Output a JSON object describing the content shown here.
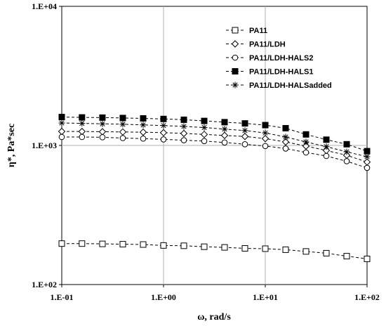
{
  "chart_data": {
    "type": "line",
    "title": "",
    "xlabel": "ω, rad/s",
    "ylabel": "η*, Pa*sec",
    "x_scale": "log",
    "y_scale": "log",
    "xlim": [
      0.1,
      100
    ],
    "ylim": [
      100,
      10000
    ],
    "x_ticks": [
      "1.E-01",
      "1.E+00",
      "1.E+01",
      "1.E+02"
    ],
    "y_ticks": [
      "1.E+02",
      "1.E+03",
      "1.E+04"
    ],
    "grid": "vertical",
    "legend_position": "top-right",
    "x": [
      0.1,
      0.158,
      0.251,
      0.398,
      0.631,
      1.0,
      1.585,
      2.512,
      3.981,
      6.31,
      10.0,
      15.85,
      25.12,
      39.81,
      63.1,
      100.0
    ],
    "series": [
      {
        "name": "PA11",
        "marker": "open-square",
        "values": [
          197,
          197,
          196,
          195,
          194,
          191,
          190,
          187,
          185,
          182,
          181,
          178,
          173,
          168,
          160,
          153
        ]
      },
      {
        "name": "PA11/LDH",
        "marker": "open-diamond",
        "values": [
          1260,
          1260,
          1255,
          1250,
          1245,
          1235,
          1220,
          1200,
          1180,
          1160,
          1120,
          1060,
          990,
          920,
          850,
          760
        ]
      },
      {
        "name": "PA11/LDH-HALS2",
        "marker": "open-circle",
        "values": [
          1150,
          1150,
          1145,
          1130,
          1120,
          1105,
          1090,
          1075,
          1050,
          1020,
          990,
          950,
          890,
          840,
          770,
          690
        ]
      },
      {
        "name": "PA11/LDH-HALS1",
        "marker": "filled-square",
        "values": [
          1600,
          1590,
          1585,
          1575,
          1565,
          1550,
          1530,
          1500,
          1470,
          1440,
          1400,
          1330,
          1200,
          1100,
          1020,
          910
        ]
      },
      {
        "name": "PA11/LDH-HALSadded",
        "marker": "asterisk",
        "values": [
          1450,
          1440,
          1430,
          1420,
          1405,
          1390,
          1370,
          1345,
          1310,
          1280,
          1230,
          1150,
          1060,
          980,
          900,
          830
        ]
      }
    ]
  }
}
